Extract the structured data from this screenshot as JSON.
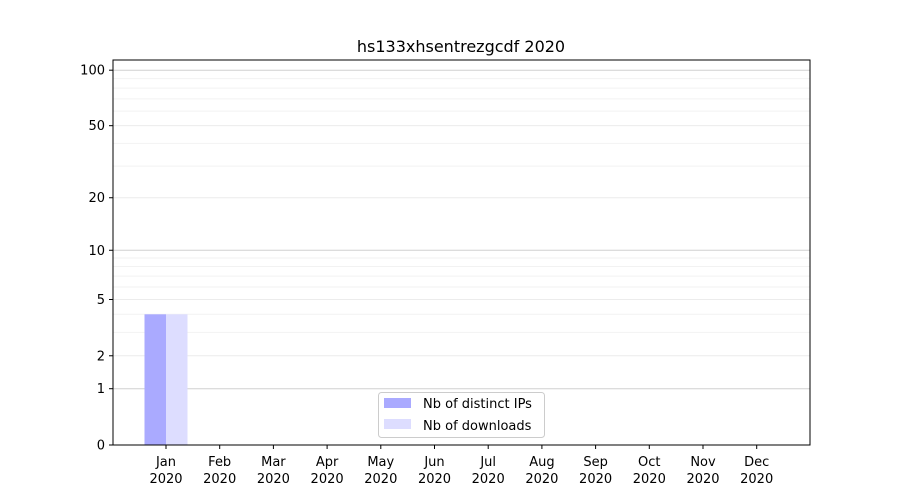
{
  "chart_data": {
    "type": "bar",
    "title": "hs133xhsentrezgcdf 2020",
    "xlabel": "",
    "ylabel": "",
    "yscale": "symlog",
    "ylim": [
      0,
      113
    ],
    "yticks": [
      0,
      1,
      2,
      5,
      10,
      20,
      50,
      100
    ],
    "ytick_labels": [
      "0",
      "1",
      "2",
      "5",
      "10",
      "20",
      "50",
      "100"
    ],
    "categories": [
      "Jan\n2020",
      "Feb\n2020",
      "Mar\n2020",
      "Apr\n2020",
      "May\n2020",
      "Jun\n2020",
      "Jul\n2020",
      "Aug\n2020",
      "Sep\n2020",
      "Oct\n2020",
      "Nov\n2020",
      "Dec\n2020"
    ],
    "category_month": [
      "Jan",
      "Feb",
      "Mar",
      "Apr",
      "May",
      "Jun",
      "Jul",
      "Aug",
      "Sep",
      "Oct",
      "Nov",
      "Dec"
    ],
    "category_year": [
      "2020",
      "2020",
      "2020",
      "2020",
      "2020",
      "2020",
      "2020",
      "2020",
      "2020",
      "2020",
      "2020",
      "2020"
    ],
    "series": [
      {
        "name": "Nb of distinct IPs",
        "color": "#aaaaff",
        "values": [
          4,
          0,
          0,
          0,
          0,
          0,
          0,
          0,
          0,
          0,
          0,
          0
        ]
      },
      {
        "name": "Nb of downloads",
        "color": "#ddddff",
        "values": [
          4,
          0,
          0,
          0,
          0,
          0,
          0,
          0,
          0,
          0,
          0,
          0
        ]
      }
    ],
    "grid": true,
    "legend_position": "lower-center"
  }
}
